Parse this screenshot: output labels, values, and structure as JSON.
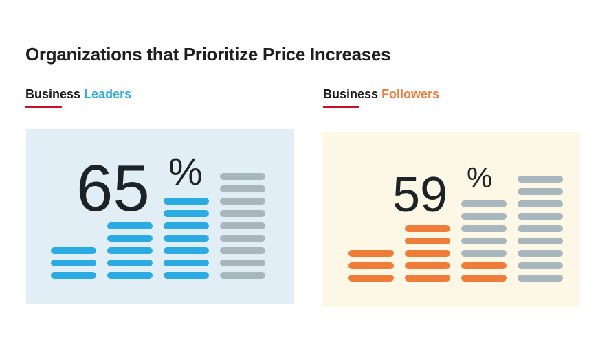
{
  "title": "Organizations that Prioritize Price Increases",
  "colors": {
    "leaders_accent": "#2aace2",
    "followers_accent": "#f07c3a",
    "inactive_bar": "#a8b6bd",
    "underline": "#c8102e",
    "leaders_bg": "#e1eef5",
    "followers_bg": "#fdf8e6"
  },
  "chart_data": [
    {
      "type": "bar",
      "title": "Business Leaders",
      "title_parts": [
        "Business",
        "Leaders"
      ],
      "value": 65,
      "value_label": "65",
      "unit": "%",
      "stack_sizes": [
        3,
        5,
        7,
        9
      ],
      "highlighted_stacks": 3
    },
    {
      "type": "bar",
      "title": "Business Followers",
      "title_parts": [
        "Business",
        "Followers"
      ],
      "value": 59,
      "value_label": "59",
      "unit": "%",
      "stack_sizes": [
        3,
        5,
        7,
        9
      ],
      "highlighted_stacks": 2,
      "partial_highlight": {
        "stack_index": 2,
        "highlighted_segments": 2
      }
    }
  ]
}
